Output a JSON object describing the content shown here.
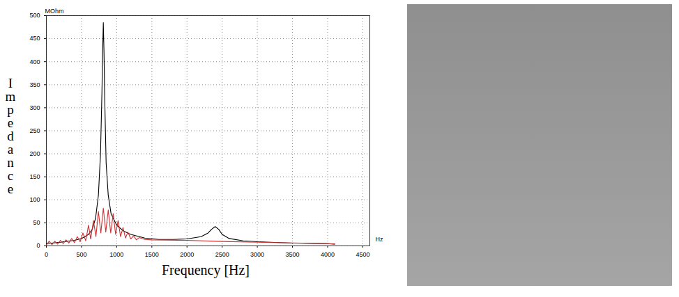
{
  "chart_data": {
    "type": "line",
    "xlabel": "Frequency [Hz]",
    "ylabel": "Impedance",
    "annotations": [
      "MOhm",
      "Hz"
    ],
    "xlim": [
      0,
      4600
    ],
    "ylim": [
      0,
      500
    ],
    "xticks": [
      0,
      500,
      1000,
      1500,
      2000,
      2500,
      3000,
      3500,
      4000,
      4500
    ],
    "yticks": [
      0,
      50,
      100,
      150,
      200,
      250,
      300,
      350,
      400,
      450,
      500
    ],
    "grid": true,
    "series": [
      {
        "color": "#000000",
        "line_style": "solid",
        "x": [
          0,
          200,
          400,
          500,
          600,
          650,
          700,
          740,
          770,
          790,
          800,
          810,
          820,
          830,
          850,
          880,
          920,
          1000,
          1100,
          1200,
          1400,
          1600,
          1800,
          2000,
          2200,
          2300,
          2350,
          2400,
          2450,
          2500,
          2600,
          2800,
          3000,
          3500,
          4000,
          4100
        ],
        "values": [
          5,
          8,
          12,
          16,
          25,
          35,
          60,
          110,
          200,
          330,
          420,
          485,
          420,
          320,
          180,
          110,
          70,
          45,
          32,
          25,
          17,
          14,
          14,
          15,
          20,
          28,
          36,
          42,
          36,
          25,
          16,
          11,
          9,
          6,
          5,
          4
        ]
      },
      {
        "color": "#cc3333",
        "line_style": "solid",
        "x": [
          0,
          40,
          80,
          120,
          160,
          200,
          240,
          280,
          320,
          360,
          400,
          440,
          480,
          520,
          560,
          600,
          630,
          670,
          705,
          740,
          775,
          810,
          845,
          880,
          915,
          950,
          985,
          1020,
          1055,
          1090,
          1125,
          1160,
          1200,
          1240,
          1280,
          1320,
          1400,
          1500,
          2000,
          2400,
          3000,
          4000,
          4100
        ],
        "values": [
          2,
          10,
          3,
          10,
          4,
          12,
          5,
          13,
          6,
          16,
          7,
          20,
          9,
          28,
          11,
          45,
          15,
          55,
          20,
          75,
          28,
          82,
          30,
          78,
          28,
          70,
          25,
          55,
          20,
          40,
          17,
          30,
          15,
          22,
          13,
          18,
          14,
          13,
          12,
          10,
          8,
          5,
          4
        ]
      }
    ]
  }
}
